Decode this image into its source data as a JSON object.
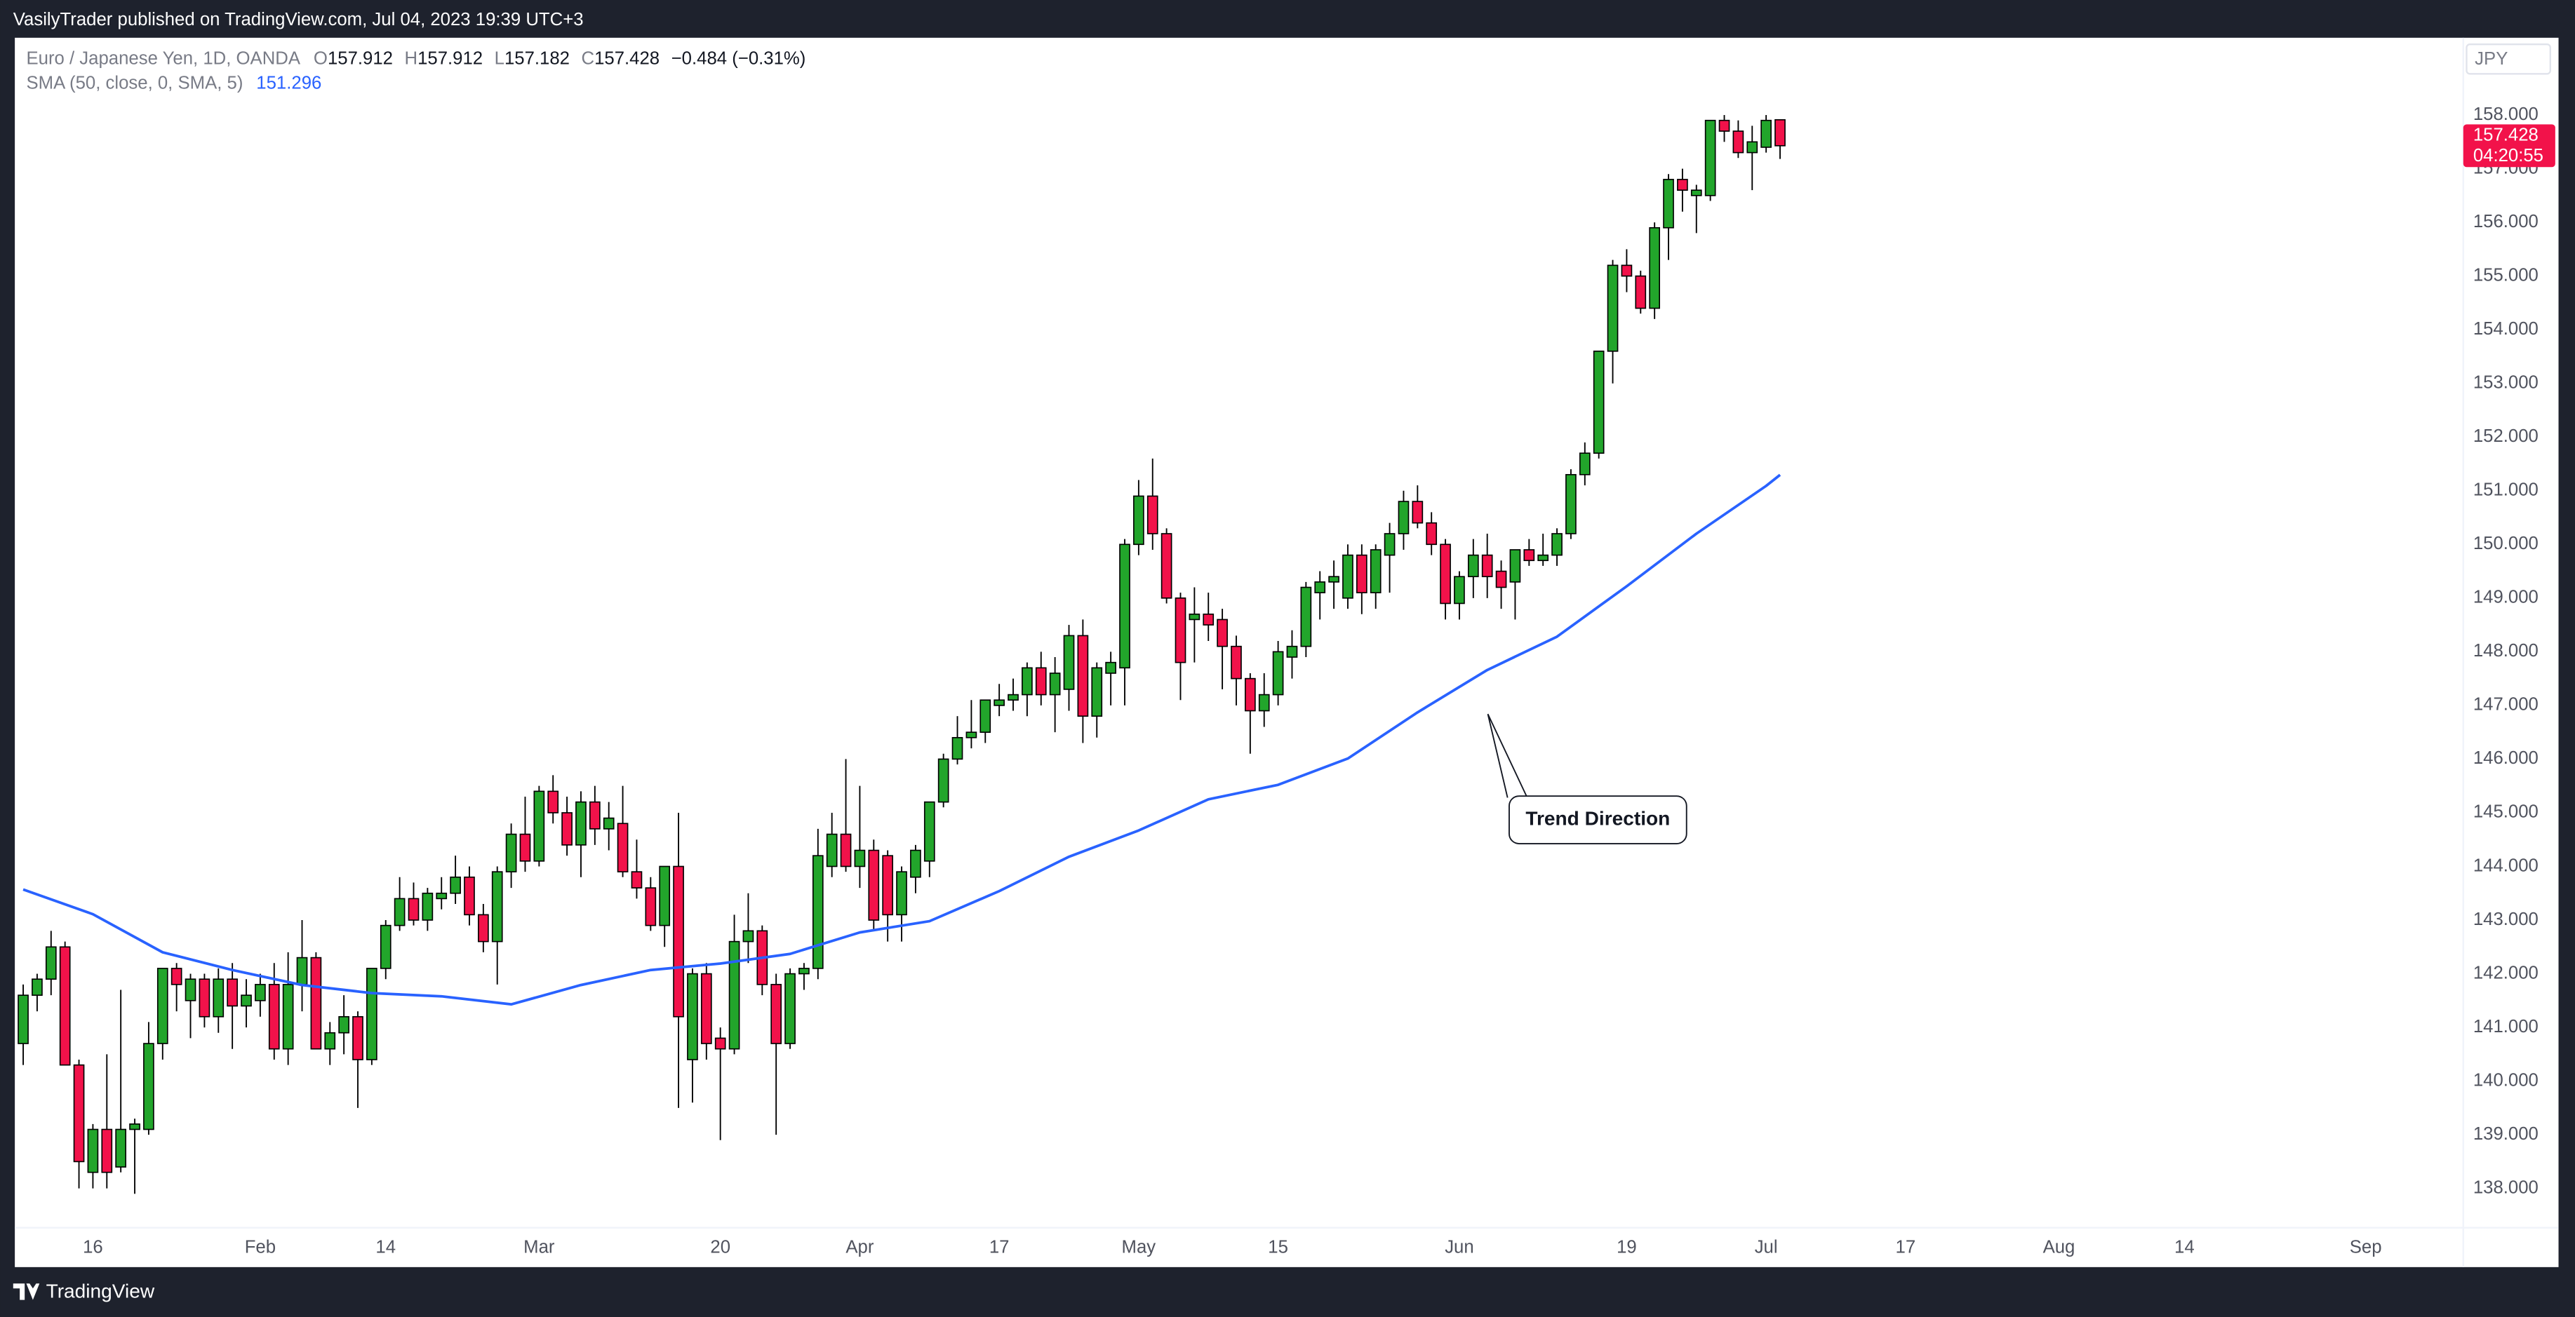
{
  "header": {
    "publisher": "VasilyTrader published on TradingView.com, Jul 04, 2023 19:39 UTC+3",
    "brand": "TradingView"
  },
  "chart_data": {
    "type": "candlestick",
    "legend": {
      "symbol": "Euro / Japanese Yen, 1D, OANDA",
      "ohlc_letters": [
        "O",
        "H",
        "L",
        "C"
      ],
      "change_label": "−0.484 (−0.31%)"
    },
    "currency": "JPY",
    "countdown": "04:20:55",
    "annotation": "Trend Direction",
    "up_color": "#22a52b",
    "down_color": "#f2124a",
    "outline_color": "#000000",
    "candles": {
      "open": [
        140.7,
        141.6,
        141.9,
        142.5,
        140.3,
        138.3,
        139.1,
        138.4,
        139.1,
        139.1,
        140.7,
        142.1,
        141.5,
        141.9,
        141.2,
        141.9,
        141.4,
        141.5,
        141.8,
        140.6,
        141.8,
        142.3,
        140.6,
        140.9,
        141.2,
        140.4,
        142.1,
        142.9,
        143.4,
        143.0,
        143.4,
        143.5,
        143.8,
        143.1,
        142.6,
        143.9,
        144.6,
        144.1,
        145.4,
        145.0,
        144.4,
        145.2,
        144.7,
        144.8,
        143.9,
        143.6,
        142.9,
        144.0,
        140.4,
        142.0,
        140.8,
        140.6,
        142.6,
        142.8,
        141.8,
        140.7,
        142.0,
        142.1,
        144.0,
        144.6,
        144.0,
        144.3,
        144.2,
        143.1,
        143.8,
        144.1,
        145.2,
        146.0,
        146.4,
        146.5,
        147.0,
        147.1,
        147.2,
        147.7,
        147.2,
        147.3,
        148.3,
        146.8,
        147.6,
        147.7,
        150.0,
        150.9,
        150.2,
        149.0,
        148.6,
        148.7,
        148.6,
        148.1,
        147.5,
        146.9,
        147.2,
        147.9,
        148.1,
        149.1,
        149.3,
        149.0,
        149.8,
        149.1,
        149.8,
        150.2,
        150.8,
        150.4,
        150.0,
        148.9,
        149.4,
        149.8,
        149.5,
        149.3,
        149.9,
        149.7,
        149.8,
        150.2,
        151.3,
        151.7,
        153.6,
        155.2,
        155.0,
        154.4,
        155.9,
        156.8,
        156.5,
        156.5,
        157.9,
        157.7,
        157.3,
        157.4,
        157.912
      ],
      "high": [
        141.8,
        142.0,
        142.8,
        142.6,
        140.4,
        139.2,
        140.5,
        141.7,
        139.3,
        141.1,
        142.1,
        142.2,
        142.0,
        142.0,
        142.1,
        142.2,
        141.9,
        142.0,
        142.2,
        142.4,
        143.0,
        142.4,
        141.1,
        141.6,
        141.3,
        142.1,
        143.0,
        143.8,
        143.7,
        143.6,
        143.8,
        144.2,
        144.0,
        143.3,
        144.0,
        144.8,
        145.3,
        145.5,
        145.7,
        145.3,
        145.4,
        145.5,
        145.2,
        145.5,
        144.5,
        143.8,
        144.0,
        145.0,
        142.1,
        142.2,
        141.0,
        143.1,
        143.5,
        142.9,
        142.0,
        142.1,
        142.2,
        144.7,
        145.0,
        146.0,
        145.5,
        144.5,
        144.3,
        144.0,
        144.4,
        145.2,
        146.1,
        146.8,
        147.1,
        147.1,
        147.4,
        147.5,
        147.8,
        148.0,
        147.9,
        148.5,
        148.6,
        147.8,
        148.0,
        150.1,
        151.2,
        151.6,
        150.3,
        149.1,
        149.2,
        149.1,
        148.8,
        148.3,
        147.6,
        147.6,
        148.2,
        148.4,
        149.3,
        149.5,
        149.7,
        150.0,
        150.0,
        150.0,
        150.4,
        151.0,
        151.1,
        150.6,
        150.1,
        149.5,
        150.1,
        150.2,
        149.7,
        149.9,
        150.1,
        150.2,
        150.3,
        151.4,
        151.9,
        153.6,
        155.3,
        155.5,
        155.1,
        156.0,
        156.9,
        157.0,
        156.7,
        157.9,
        158.0,
        157.9,
        157.8,
        158.0,
        157.912
      ],
      "low": [
        140.3,
        141.3,
        141.6,
        140.3,
        138.0,
        138.0,
        138.0,
        138.3,
        137.9,
        139.0,
        140.4,
        141.3,
        140.8,
        141.0,
        140.9,
        140.6,
        141.0,
        141.2,
        140.4,
        140.3,
        141.3,
        140.6,
        140.3,
        140.5,
        139.5,
        140.3,
        141.9,
        142.8,
        142.9,
        142.8,
        143.2,
        143.3,
        142.9,
        142.4,
        141.8,
        143.6,
        143.9,
        144.0,
        144.8,
        144.2,
        143.8,
        144.4,
        144.3,
        143.8,
        143.4,
        142.8,
        142.5,
        139.5,
        139.6,
        140.4,
        138.9,
        140.5,
        142.2,
        141.6,
        139.0,
        140.6,
        141.7,
        141.9,
        143.8,
        143.9,
        143.6,
        142.8,
        142.6,
        142.6,
        143.5,
        143.8,
        145.1,
        145.9,
        146.2,
        146.3,
        146.8,
        146.9,
        146.8,
        147.0,
        146.5,
        146.9,
        146.3,
        146.4,
        147.0,
        147.0,
        149.8,
        149.9,
        148.9,
        147.1,
        147.8,
        148.2,
        147.3,
        147.0,
        146.1,
        146.6,
        147.0,
        147.5,
        147.9,
        148.6,
        148.8,
        148.8,
        148.7,
        148.8,
        149.1,
        149.9,
        150.3,
        149.8,
        148.6,
        148.6,
        149.0,
        149.0,
        148.8,
        148.6,
        149.6,
        149.6,
        149.6,
        150.1,
        151.1,
        151.6,
        153.0,
        154.7,
        154.3,
        154.2,
        155.3,
        156.2,
        155.8,
        156.4,
        157.5,
        157.2,
        156.6,
        157.3,
        157.182
      ],
      "close": [
        141.6,
        141.9,
        142.5,
        140.3,
        138.5,
        139.1,
        138.3,
        139.1,
        139.2,
        140.7,
        142.1,
        141.8,
        141.9,
        141.2,
        141.9,
        141.4,
        141.6,
        141.8,
        140.6,
        141.8,
        142.3,
        140.6,
        140.9,
        141.2,
        140.4,
        142.1,
        142.9,
        143.4,
        143.0,
        143.5,
        143.5,
        143.8,
        143.1,
        142.6,
        143.9,
        144.6,
        144.1,
        145.4,
        145.0,
        144.4,
        145.2,
        144.7,
        144.9,
        143.9,
        143.6,
        142.9,
        144.0,
        141.2,
        142.0,
        140.7,
        140.6,
        142.6,
        142.8,
        141.8,
        140.7,
        142.0,
        142.1,
        144.2,
        144.6,
        144.0,
        144.3,
        143.0,
        143.1,
        143.9,
        144.3,
        145.2,
        146.0,
        146.4,
        146.5,
        147.1,
        147.1,
        147.2,
        147.7,
        147.2,
        147.6,
        148.3,
        146.8,
        147.7,
        147.8,
        150.0,
        150.9,
        150.2,
        149.0,
        147.8,
        148.7,
        148.5,
        148.1,
        147.5,
        146.9,
        147.2,
        148.0,
        148.1,
        149.2,
        149.3,
        149.4,
        149.8,
        149.1,
        149.9,
        150.2,
        150.8,
        150.4,
        150.0,
        148.9,
        149.4,
        149.8,
        149.4,
        149.2,
        149.9,
        149.7,
        149.8,
        150.2,
        151.3,
        151.7,
        153.6,
        155.2,
        155.0,
        154.4,
        155.9,
        156.8,
        156.6,
        156.6,
        157.9,
        157.7,
        157.3,
        157.5,
        157.9,
        157.428
      ]
    },
    "sma": {
      "name": "SMA (50, close, 0, SMA, 5)",
      "color": "#2962ff",
      "x": [
        0,
        5,
        10,
        15,
        20,
        25,
        30,
        35,
        40,
        45,
        50,
        55,
        60,
        65,
        70,
        75,
        80,
        85,
        90,
        95,
        100,
        105,
        110,
        115,
        120,
        125,
        126
      ],
      "values": [
        143.57,
        143.11,
        142.4,
        142.07,
        141.79,
        141.64,
        141.58,
        141.43,
        141.79,
        142.07,
        142.19,
        142.37,
        142.77,
        142.98,
        143.54,
        144.18,
        144.67,
        145.25,
        145.52,
        146.01,
        146.87,
        147.66,
        148.28,
        149.22,
        150.2,
        151.09,
        151.296
      ]
    },
    "xlim": [
      -0.6,
      175
    ],
    "xticks": [
      {
        "value": 5,
        "label": "16"
      },
      {
        "value": 17,
        "label": "Feb"
      },
      {
        "value": 26,
        "label": "14"
      },
      {
        "value": 37,
        "label": "Mar"
      },
      {
        "value": 50,
        "label": "20"
      },
      {
        "value": 60,
        "label": "Apr"
      },
      {
        "value": 70,
        "label": "17"
      },
      {
        "value": 80,
        "label": "May"
      },
      {
        "value": 90,
        "label": "15"
      },
      {
        "value": 103,
        "label": "Jun"
      },
      {
        "value": 115,
        "label": "19"
      },
      {
        "value": 125,
        "label": "Jul"
      },
      {
        "value": 135,
        "label": "17"
      },
      {
        "value": 146,
        "label": "Aug"
      },
      {
        "value": 155,
        "label": "14"
      },
      {
        "value": 168,
        "label": "Sep"
      }
    ],
    "ylim": [
      137.36,
      159.44
    ],
    "yticks": [
      {
        "value": 138,
        "label": "138.000"
      },
      {
        "value": 139,
        "label": "139.000"
      },
      {
        "value": 140,
        "label": "140.000"
      },
      {
        "value": 141,
        "label": "141.000"
      },
      {
        "value": 142,
        "label": "142.000"
      },
      {
        "value": 143,
        "label": "143.000"
      },
      {
        "value": 144,
        "label": "144.000"
      },
      {
        "value": 145,
        "label": "145.000"
      },
      {
        "value": 146,
        "label": "146.000"
      },
      {
        "value": 147,
        "label": "147.000"
      },
      {
        "value": 148,
        "label": "148.000"
      },
      {
        "value": 149,
        "label": "149.000"
      },
      {
        "value": 150,
        "label": "150.000"
      },
      {
        "value": 151,
        "label": "151.000"
      },
      {
        "value": 152,
        "label": "152.000"
      },
      {
        "value": 153,
        "label": "153.000"
      },
      {
        "value": 154,
        "label": "154.000"
      },
      {
        "value": 155,
        "label": "155.000"
      },
      {
        "value": 156,
        "label": "156.000"
      },
      {
        "value": 157,
        "label": "157.000"
      },
      {
        "value": 158,
        "label": "158.000"
      }
    ],
    "grid": false
  }
}
